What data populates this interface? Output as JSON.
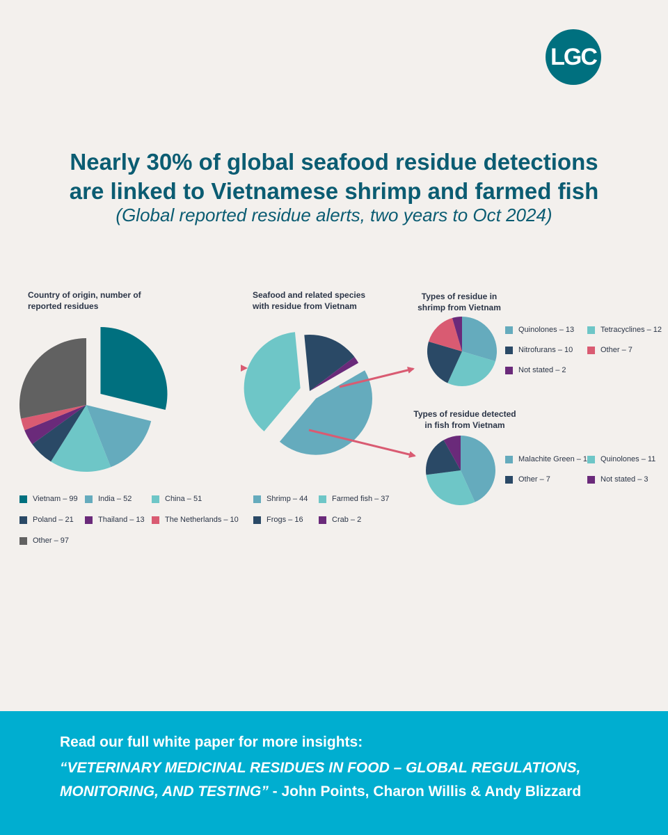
{
  "logo": {
    "text": "LGC"
  },
  "header": {
    "title_line1": "Nearly 30% of global seafood residue detections",
    "title_line2": "are linked to Vietnamese shrimp and farmed fish",
    "subtitle": "(Global reported residue alerts, two years to Oct 2024)"
  },
  "colors": {
    "teal_dark": "#00707f",
    "teal_mid": "#65abbd",
    "teal_light": "#6ec6c7",
    "navy": "#2a4966",
    "purple": "#6a2a7a",
    "pink": "#d95b72",
    "gray": "#616161",
    "arrow": "#d95b72"
  },
  "chart_data": [
    {
      "type": "pie",
      "title_line1": "Country of origin, number of",
      "title_line2": "reported residues",
      "slices": [
        {
          "label": "Vietnam – 99",
          "value": 99,
          "color": "#00707f",
          "exploded": true
        },
        {
          "label": "India – 52",
          "value": 52,
          "color": "#65abbd"
        },
        {
          "label": "China – 51",
          "value": 51,
          "color": "#6ec6c7"
        },
        {
          "label": "Poland – 21",
          "value": 21,
          "color": "#2a4966"
        },
        {
          "label": "Thailand – 13",
          "value": 13,
          "color": "#6a2a7a"
        },
        {
          "label": "The Netherlands – 10",
          "value": 10,
          "color": "#d95b72"
        },
        {
          "label": "Other – 97",
          "value": 97,
          "color": "#616161"
        }
      ]
    },
    {
      "type": "pie",
      "title_line1": "Seafood and related species",
      "title_line2": "with residue from Vietnam",
      "slices": [
        {
          "label": "Shrimp – 44",
          "value": 44,
          "color": "#65abbd",
          "exploded": true
        },
        {
          "label": "Farmed fish – 37",
          "value": 37,
          "color": "#6ec6c7",
          "exploded": true
        },
        {
          "label": "Frogs – 16",
          "value": 16,
          "color": "#2a4966"
        },
        {
          "label": "Crab – 2",
          "value": 2,
          "color": "#6a2a7a"
        }
      ]
    },
    {
      "type": "pie",
      "title_line1": "Types of residue in",
      "title_line2": "shrimp from Vietnam",
      "slices": [
        {
          "label": "Quinolones – 13",
          "value": 13,
          "color": "#65abbd"
        },
        {
          "label": "Tetracyclines – 12",
          "value": 12,
          "color": "#6ec6c7"
        },
        {
          "label": "Nitrofurans – 10",
          "value": 10,
          "color": "#2a4966"
        },
        {
          "label": "Other – 7",
          "value": 7,
          "color": "#d95b72"
        },
        {
          "label": "Not stated – 2",
          "value": 2,
          "color": "#6a2a7a"
        }
      ]
    },
    {
      "type": "pie",
      "title_line1": "Types of residue detected",
      "title_line2": "in fish from Vietnam",
      "slices": [
        {
          "label": "Malachite Green – 16",
          "value": 16,
          "color": "#65abbd"
        },
        {
          "label": "Quinolones – 11",
          "value": 11,
          "color": "#6ec6c7"
        },
        {
          "label": "Other – 7",
          "value": 7,
          "color": "#2a4966"
        },
        {
          "label": "Not stated – 3",
          "value": 3,
          "color": "#6a2a7a"
        }
      ]
    }
  ],
  "footer": {
    "line1": "Read our full white paper for more insights:",
    "line2": "“VETERINARY MEDICINAL RESIDUES IN FOOD – GLOBAL REGULATIONS,",
    "line3_title": "MONITORING, AND TESTING”",
    "line3_authors": " - John Points, Charon Willis & Andy Blizzard"
  }
}
